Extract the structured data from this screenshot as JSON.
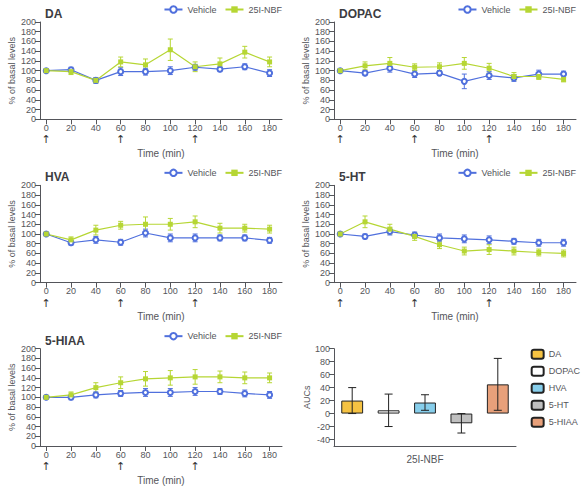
{
  "chart_data": [
    {
      "type": "line",
      "title": "DA",
      "xlabel": "Time (min)",
      "ylabel": "% of basal levels",
      "x": [
        0,
        20,
        40,
        60,
        80,
        100,
        120,
        140,
        160,
        180
      ],
      "xlim": [
        -5,
        190
      ],
      "xticks": [
        0,
        20,
        40,
        60,
        80,
        100,
        120,
        140,
        160,
        180
      ],
      "ylim": [
        0,
        200
      ],
      "yticks": [
        0,
        20,
        40,
        60,
        80,
        100,
        120,
        140,
        160,
        180,
        200
      ],
      "grid": false,
      "legend": "upper right",
      "series": [
        {
          "name": "Vehicle",
          "marker": "circle",
          "values": [
            100,
            102,
            80,
            98,
            98,
            100,
            107,
            103,
            108,
            95
          ],
          "errors": [
            3,
            5,
            6,
            8,
            7,
            8,
            6,
            5,
            6,
            7
          ]
        },
        {
          "name": "25I-NBF",
          "marker": "square",
          "values": [
            100,
            98,
            80,
            118,
            112,
            143,
            108,
            114,
            138,
            118
          ],
          "errors": [
            4,
            6,
            5,
            10,
            12,
            22,
            10,
            12,
            12,
            10
          ]
        }
      ],
      "annotations": [
        {
          "x": 0,
          "text": "↑"
        },
        {
          "x": 60,
          "text": "↑"
        },
        {
          "x": 120,
          "text": "↑"
        }
      ]
    },
    {
      "type": "line",
      "title": "DOPAC",
      "xlabel": "Time (min)",
      "ylabel": "% of basal levels",
      "x": [
        0,
        20,
        40,
        60,
        80,
        100,
        120,
        140,
        160,
        180
      ],
      "xlim": [
        -5,
        190
      ],
      "xticks": [
        0,
        20,
        40,
        60,
        80,
        100,
        120,
        140,
        160,
        180
      ],
      "ylim": [
        0,
        200
      ],
      "yticks": [
        0,
        20,
        40,
        60,
        80,
        100,
        120,
        140,
        160,
        180,
        200
      ],
      "grid": false,
      "legend": "upper right",
      "series": [
        {
          "name": "Vehicle",
          "marker": "circle",
          "values": [
            100,
            95,
            105,
            93,
            95,
            78,
            90,
            85,
            93,
            93
          ],
          "errors": [
            3,
            5,
            8,
            7,
            5,
            15,
            8,
            7,
            8,
            6
          ]
        },
        {
          "name": "25I-NBF",
          "marker": "square",
          "values": [
            100,
            110,
            115,
            107,
            108,
            115,
            105,
            88,
            88,
            82
          ],
          "errors": [
            4,
            8,
            12,
            7,
            8,
            12,
            10,
            8,
            6,
            5
          ]
        }
      ],
      "annotations": [
        {
          "x": 0,
          "text": "↑"
        },
        {
          "x": 60,
          "text": "↑"
        },
        {
          "x": 120,
          "text": "↑"
        }
      ]
    },
    {
      "type": "line",
      "title": "HVA",
      "xlabel": "Time (min)",
      "ylabel": "% of basal levels",
      "x": [
        0,
        20,
        40,
        60,
        80,
        100,
        120,
        140,
        160,
        180
      ],
      "xlim": [
        -5,
        190
      ],
      "xticks": [
        0,
        20,
        40,
        60,
        80,
        100,
        120,
        140,
        160,
        180
      ],
      "ylim": [
        0,
        200
      ],
      "yticks": [
        0,
        20,
        40,
        60,
        80,
        100,
        120,
        140,
        160,
        180,
        200
      ],
      "grid": false,
      "legend": "upper right",
      "series": [
        {
          "name": "Vehicle",
          "marker": "circle",
          "values": [
            100,
            82,
            88,
            83,
            102,
            92,
            92,
            92,
            92,
            87
          ],
          "errors": [
            3,
            5,
            7,
            6,
            8,
            8,
            8,
            6,
            6,
            6
          ]
        },
        {
          "name": "25I-NBF",
          "marker": "square",
          "values": [
            100,
            88,
            108,
            118,
            120,
            120,
            125,
            112,
            112,
            110
          ],
          "errors": [
            4,
            6,
            10,
            8,
            15,
            12,
            12,
            10,
            8,
            8
          ]
        }
      ],
      "annotations": [
        {
          "x": 0,
          "text": "↑"
        },
        {
          "x": 60,
          "text": "↑"
        },
        {
          "x": 120,
          "text": "↑"
        }
      ]
    },
    {
      "type": "line",
      "title": "5-HT",
      "xlabel": "Time (min)",
      "ylabel": "% of basal levels",
      "x": [
        0,
        20,
        40,
        60,
        80,
        100,
        120,
        140,
        160,
        180
      ],
      "xlim": [
        -5,
        190
      ],
      "xticks": [
        0,
        20,
        40,
        60,
        80,
        100,
        120,
        140,
        160,
        180
      ],
      "ylim": [
        0,
        200
      ],
      "yticks": [
        0,
        20,
        40,
        60,
        80,
        100,
        120,
        140,
        160,
        180,
        200
      ],
      "grid": false,
      "legend": "upper right",
      "series": [
        {
          "name": "Vehicle",
          "marker": "circle",
          "values": [
            100,
            95,
            105,
            98,
            92,
            90,
            88,
            85,
            82,
            82
          ],
          "errors": [
            3,
            5,
            7,
            6,
            8,
            8,
            8,
            6,
            7,
            7
          ]
        },
        {
          "name": "25I-NBF",
          "marker": "square",
          "values": [
            100,
            125,
            110,
            95,
            78,
            65,
            68,
            65,
            62,
            60
          ],
          "errors": [
            4,
            12,
            10,
            8,
            8,
            8,
            10,
            8,
            7,
            7
          ]
        }
      ],
      "annotations": [
        {
          "x": 0,
          "text": "↑"
        },
        {
          "x": 60,
          "text": "↑"
        },
        {
          "x": 120,
          "text": "↑"
        }
      ]
    },
    {
      "type": "line",
      "title": "5-HIAA",
      "xlabel": "Time (min)",
      "ylabel": "% of basal levels",
      "x": [
        0,
        20,
        40,
        60,
        80,
        100,
        120,
        140,
        160,
        180
      ],
      "xlim": [
        -5,
        190
      ],
      "xticks": [
        0,
        20,
        40,
        60,
        80,
        100,
        120,
        140,
        160,
        180
      ],
      "ylim": [
        0,
        200
      ],
      "yticks": [
        0,
        20,
        40,
        60,
        80,
        100,
        120,
        140,
        160,
        180,
        200
      ],
      "grid": false,
      "legend": "upper right",
      "series": [
        {
          "name": "Vehicle",
          "marker": "circle",
          "values": [
            100,
            100,
            105,
            108,
            110,
            110,
            112,
            112,
            108,
            105
          ],
          "errors": [
            3,
            5,
            6,
            6,
            8,
            8,
            8,
            6,
            7,
            7
          ]
        },
        {
          "name": "25I-NBF",
          "marker": "square",
          "values": [
            100,
            105,
            120,
            130,
            138,
            140,
            142,
            142,
            140,
            140
          ],
          "errors": [
            4,
            6,
            10,
            12,
            15,
            15,
            15,
            12,
            12,
            10
          ]
        }
      ],
      "annotations": [
        {
          "x": 0,
          "text": "↑"
        },
        {
          "x": 60,
          "text": "↑"
        },
        {
          "x": 120,
          "text": "↑"
        }
      ]
    },
    {
      "type": "bar",
      "xlabel": "25I-NBF",
      "ylabel": "AUCs",
      "categories": [
        "DA",
        "DOPAC",
        "HVA",
        "5-HT",
        "5-HIAA"
      ],
      "values": [
        20,
        5,
        17,
        -15,
        45
      ],
      "errors": [
        20,
        25,
        12,
        15,
        40
      ],
      "colors": [
        "#F5C242",
        "#FFFFFF",
        "#87CEEB",
        "#C0C0C0",
        "#E8A07A"
      ],
      "ylim": [
        -50,
        100
      ],
      "yticks": [
        -40,
        -20,
        0,
        20,
        40,
        60,
        80,
        100
      ],
      "grid": false,
      "legend": "upper right",
      "tick_labels": "y"
    }
  ]
}
